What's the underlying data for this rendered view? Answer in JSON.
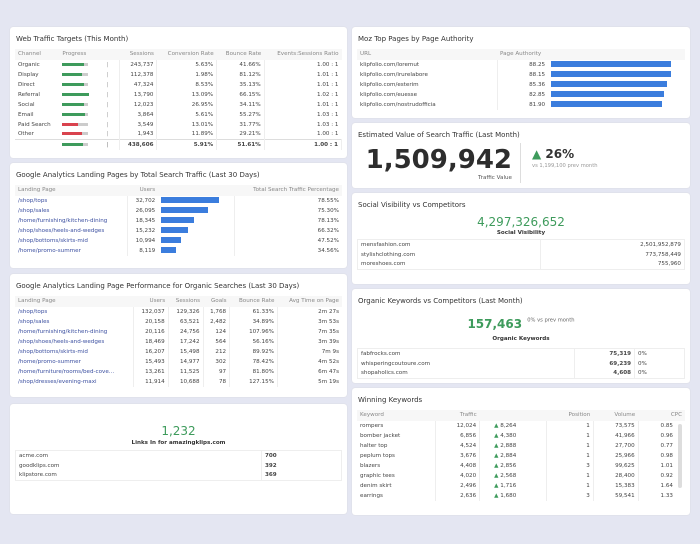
{
  "colors": {
    "green": "#3e9b5c",
    "red": "#d9434e",
    "bar": "#3b7ddd",
    "track": "#cccccc"
  },
  "web_traffic": {
    "title": "Web Traffic Targets (This Month)",
    "headers": [
      "Channel",
      "Progress",
      "Sessions",
      "Conversion Rate",
      "Bounce Rate",
      "Events:Sessions Ratio"
    ],
    "rows": [
      {
        "channel": "Organic",
        "progress": 1.0,
        "status": "green",
        "sessions": "243,737",
        "conv": "5.63%",
        "bounce": "41.66%",
        "ratio": "1.00 : 1"
      },
      {
        "channel": "Display",
        "progress": 0.9,
        "status": "green",
        "sessions": "112,378",
        "conv": "1.98%",
        "bounce": "81.12%",
        "ratio": "1.01 : 1"
      },
      {
        "channel": "Direct",
        "progress": 1.0,
        "status": "green",
        "sessions": "47,324",
        "conv": "8.53%",
        "bounce": "35.13%",
        "ratio": "1.01 : 1"
      },
      {
        "channel": "Referral",
        "progress": 1.2,
        "status": "green",
        "sessions": "13,790",
        "conv": "13.09%",
        "bounce": "66.15%",
        "ratio": "1.02 : 1"
      },
      {
        "channel": "Social",
        "progress": 1.0,
        "status": "green",
        "sessions": "12,023",
        "conv": "26.95%",
        "bounce": "34.11%",
        "ratio": "1.01 : 1"
      },
      {
        "channel": "Email",
        "progress": 1.05,
        "status": "green",
        "sessions": "3,864",
        "conv": "5.61%",
        "bounce": "55.27%",
        "ratio": "1.03 : 1"
      },
      {
        "channel": "Paid Search",
        "progress": 0.7,
        "status": "red",
        "sessions": "3,549",
        "conv": "13.01%",
        "bounce": "31.77%",
        "ratio": "1.03 : 1"
      },
      {
        "channel": "Other",
        "progress": 0.9,
        "status": "red",
        "sessions": "1,943",
        "conv": "11.89%",
        "bounce": "29.21%",
        "ratio": "1.00 : 1"
      }
    ],
    "total": {
      "progress": 0.95,
      "status": "green",
      "sessions": "438,606",
      "conv": "5.91%",
      "bounce": "51.61%",
      "ratio": "1.00 : 1"
    }
  },
  "landing_traffic": {
    "title": "Google Analytics Landing Pages by Total Search Traffic (Last 30 Days)",
    "headers": [
      "Landing Page",
      "Users",
      "Total Search Traffic Percentage"
    ],
    "rows": [
      [
        "/shop/tops",
        "32,702",
        32702,
        "78.55%"
      ],
      [
        "/shop/sales",
        "26,095",
        26095,
        "75.30%"
      ],
      [
        "/home/furnishing/kitchen-dining",
        "18,345",
        18345,
        "78.13%"
      ],
      [
        "/shop/shoes/heels-and-wedges",
        "15,232",
        15232,
        "66.32%"
      ],
      [
        "/shop/bottoms/skirts-mid",
        "10,994",
        10994,
        "47.52%"
      ],
      [
        "/home/promo-summer",
        "8,119",
        8119,
        "34.56%"
      ]
    ]
  },
  "landing_perf": {
    "title": "Google Analytics Landing Page Performance for Organic Searches (Last 30 Days)",
    "headers": [
      "Landing Page",
      "Users",
      "Sessions",
      "Goals",
      "Bounce Rate",
      "Avg Time on Page"
    ],
    "rows": [
      [
        "/shop/tops",
        "132,037",
        "129,326",
        "1,768",
        "61.33%",
        "2m 27s"
      ],
      [
        "/shop/sales",
        "20,158",
        "63,521",
        "2,482",
        "34.89%",
        "3m 53s"
      ],
      [
        "/home/furnishing/kitchen-dining",
        "20,116",
        "24,756",
        "124",
        "107.96%",
        "7m 35s"
      ],
      [
        "/shop/shoes/heels-and-wedges",
        "18,469",
        "17,242",
        "564",
        "56.16%",
        "3m 39s"
      ],
      [
        "/shop/bottoms/skirts-mid",
        "16,207",
        "15,498",
        "212",
        "89.92%",
        "7m 9s"
      ],
      [
        "/home/promo-summer",
        "15,493",
        "14,977",
        "302",
        "78.42%",
        "4m 52s"
      ],
      [
        "/home/furniture/rooms/bed-cove...",
        "13,261",
        "11,525",
        "97",
        "81.80%",
        "6m 47s"
      ],
      [
        "/shop/dresses/evening-maxi",
        "11,914",
        "10,688",
        "78",
        "127.15%",
        "5m 19s"
      ]
    ]
  },
  "links": {
    "value": "1,232",
    "label": "Links In for amazingklips.com",
    "rows": [
      [
        "acme.com",
        "700"
      ],
      [
        "goodklips.com",
        "392"
      ],
      [
        "klipstore.com",
        "369"
      ]
    ]
  },
  "moz": {
    "title": "Moz Top Pages by Page Authority",
    "headers": [
      "URL",
      "Page Authority"
    ],
    "rows": [
      [
        "klipfolio.com/loremut",
        "88.25",
        88.25
      ],
      [
        "klipfolio.com/irurelabore",
        "88.15",
        88.15
      ],
      [
        "klipfolio.com/esterim",
        "85.36",
        85.36
      ],
      [
        "klipfolio.com/euesse",
        "82.85",
        82.85
      ],
      [
        "klipfolio.com/nostrudofficia",
        "81.90",
        81.9
      ]
    ]
  },
  "est_value": {
    "title": "Estimated Value of Search Traffic (Last Month)",
    "value": "1,509,942",
    "label": "Traffic Value",
    "change": "26%",
    "direction": "up",
    "compare": "vs 1,199,100 prev month"
  },
  "social": {
    "title": "Social Visibility vs Competitors",
    "value": "4,297,326,652",
    "label": "Social Visibility",
    "rows": [
      [
        "mensfashion.com",
        "2,501,952,879"
      ],
      [
        "stylishclothing.com",
        "773,758,449"
      ],
      [
        "moreshoes.com",
        "755,960"
      ]
    ]
  },
  "organic": {
    "title": "Organic Keywords vs Competitors (Last Month)",
    "value": "157,463",
    "compare": "0% vs prev month",
    "label": "Organic Keywords",
    "rows": [
      [
        "fabfrocks.com",
        "75,319",
        "0%"
      ],
      [
        "whisperingcoutoure.com",
        "69,239",
        "0%"
      ],
      [
        "shopaholics.com",
        "4,608",
        "0%"
      ]
    ]
  },
  "winning": {
    "title": "Winning Keywords",
    "headers": [
      "Keyword",
      "Traffic",
      "",
      "Position",
      "Volume",
      "CPC"
    ],
    "rows": [
      [
        "rompers",
        "12,024",
        "8,264",
        "1",
        "73,575",
        "0.85"
      ],
      [
        "bomber jacket",
        "6,856",
        "4,380",
        "1",
        "41,966",
        "0.96"
      ],
      [
        "halter top",
        "4,524",
        "2,888",
        "1",
        "27,700",
        "0.77"
      ],
      [
        "peplum tops",
        "3,676",
        "2,884",
        "1",
        "25,966",
        "0.98"
      ],
      [
        "blazers",
        "4,408",
        "2,856",
        "3",
        "99,625",
        "1.01"
      ],
      [
        "graphic tees",
        "4,020",
        "2,568",
        "1",
        "28,400",
        "0.92"
      ],
      [
        "denim skirt",
        "2,496",
        "1,716",
        "1",
        "15,383",
        "1.64"
      ],
      [
        "earrings",
        "2,636",
        "1,680",
        "3",
        "59,541",
        "1.33"
      ]
    ]
  }
}
